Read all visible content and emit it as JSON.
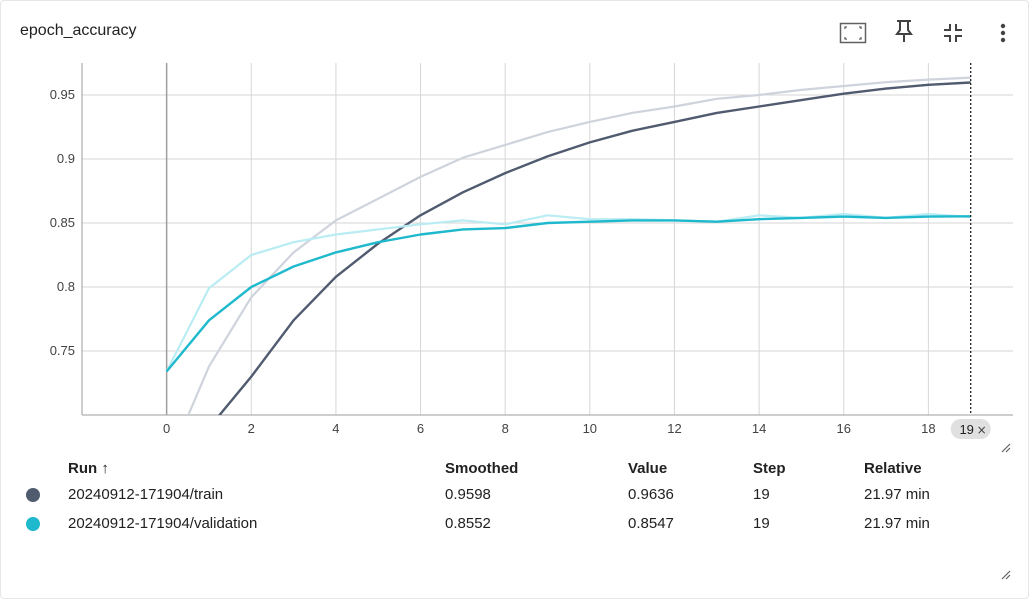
{
  "card": {
    "title": "epoch_accuracy",
    "icons": [
      "fit-domain-icon",
      "pin-icon",
      "collapse-icon",
      "more-vert-icon"
    ]
  },
  "colors": {
    "train": "#505b6f",
    "train_raw": "#cfd3dc",
    "validation": "#1fb9cd",
    "validation_raw": "#b9ecf3",
    "grid": "#d6d6d6"
  },
  "chart_data": {
    "type": "line",
    "title": "epoch_accuracy",
    "xlabel": "",
    "ylabel": "",
    "xlim": [
      -2,
      20
    ],
    "ylim": [
      0.7,
      0.975
    ],
    "x_ticks": [
      "0",
      "2",
      "4",
      "6",
      "8",
      "10",
      "12",
      "14",
      "16",
      "18"
    ],
    "y_ticks": [
      "0.75",
      "0.8",
      "0.85",
      "0.9",
      "0.95"
    ],
    "grid": true,
    "hover_step": 19,
    "hover_label": "19",
    "x": [
      0,
      1,
      2,
      3,
      4,
      5,
      6,
      7,
      8,
      9,
      10,
      11,
      12,
      13,
      14,
      15,
      16,
      17,
      18,
      19
    ],
    "series": [
      {
        "name": "20240912-171904/train",
        "kind": "raw",
        "values": [
          0.66,
          0.738,
          0.792,
          0.827,
          0.852,
          0.869,
          0.886,
          0.901,
          0.911,
          0.921,
          0.929,
          0.936,
          0.941,
          0.947,
          0.95,
          0.954,
          0.957,
          0.96,
          0.962,
          0.9636
        ]
      },
      {
        "name": "20240912-171904/train",
        "kind": "smoothed",
        "values": [
          0.62,
          0.69,
          0.73,
          0.774,
          0.808,
          0.834,
          0.856,
          0.874,
          0.889,
          0.902,
          0.913,
          0.922,
          0.929,
          0.936,
          0.941,
          0.946,
          0.951,
          0.955,
          0.958,
          0.9598
        ]
      },
      {
        "name": "20240912-171904/validation",
        "kind": "raw",
        "values": [
          0.734,
          0.799,
          0.825,
          0.835,
          0.841,
          0.845,
          0.849,
          0.852,
          0.849,
          0.856,
          0.853,
          0.853,
          0.852,
          0.851,
          0.856,
          0.854,
          0.857,
          0.854,
          0.857,
          0.8547
        ]
      },
      {
        "name": "20240912-171904/validation",
        "kind": "smoothed",
        "values": [
          0.734,
          0.774,
          0.8,
          0.816,
          0.827,
          0.835,
          0.841,
          0.845,
          0.846,
          0.85,
          0.851,
          0.852,
          0.852,
          0.851,
          0.853,
          0.854,
          0.855,
          0.854,
          0.855,
          0.8552
        ]
      }
    ]
  },
  "table": {
    "headers": {
      "run": "Run ↑",
      "smoothed": "Smoothed",
      "value": "Value",
      "step": "Step",
      "relative": "Relative"
    },
    "rows": [
      {
        "color": "#505b6f",
        "run": "20240912-171904/train",
        "smoothed": "0.9598",
        "value": "0.9636",
        "step": "19",
        "relative": "21.97 min"
      },
      {
        "color": "#1fb9cd",
        "run": "20240912-171904/validation",
        "smoothed": "0.8552",
        "value": "0.8547",
        "step": "19",
        "relative": "21.97 min"
      }
    ]
  }
}
